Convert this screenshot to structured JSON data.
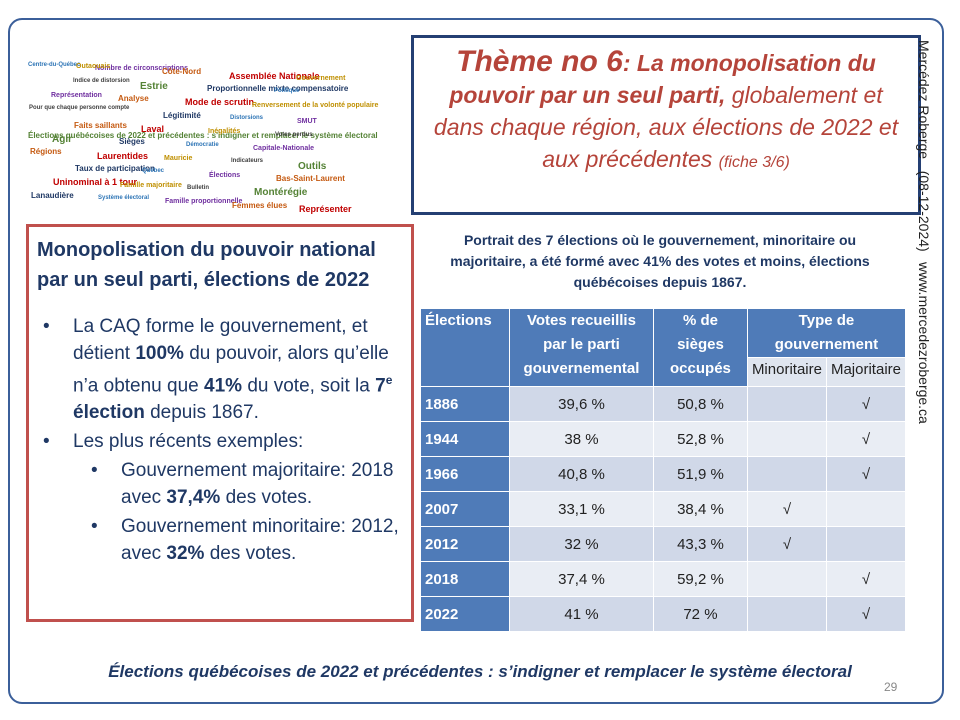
{
  "word_cloud": [
    "Centre-du-Québec",
    "Nombre de circonscriptions",
    "Côte-Nord",
    "Assemblée Nationale",
    "Gouvernement",
    "Indice de distorsion",
    "Estrie",
    "Proportionnelle mixte compensatoire",
    "Politique",
    "Représentation",
    "Analyse",
    "Mode de scrutin",
    "Renversement de la volonté populaire",
    "Pour que chaque personne compte",
    "Élections québécoises de 2022 et précédentes : s'indigner et remplacer le système électoral",
    "Légitimité",
    "Distorsions",
    "SMUT",
    "Faits saillants",
    "Laval",
    "Inégalités",
    "Votes perdus",
    "Agir",
    "Sièges",
    "Démocratie",
    "Capitale-Nationale",
    "Régions",
    "Laurentides",
    "Mauricie",
    "Indicateurs",
    "Outils",
    "Taux de participation",
    "Québec",
    "Élections",
    "Bas-Saint-Laurent",
    "Uninominal à 1 tour",
    "Famille majoritaire",
    "Bulletin",
    "Montérégie",
    "Lanaudière",
    "Système électoral",
    "Famille proportionnelle",
    "Femmes élues",
    "Représenter",
    "Outaouais"
  ],
  "title": {
    "lead": "Thème no 6",
    "bold": ": La monopolisation du pouvoir par un seul parti,",
    "rest": " globalement et dans chaque région, aux élections de 2022 et aux précédentes",
    "note": "(fiche 3/6)"
  },
  "side_credit": {
    "author": "Mercédez Roberge",
    "date": "(08-12-2024)",
    "url": "www.mercedezroberge.ca"
  },
  "left_box": {
    "heading": "Monopolisation du pouvoir national par un seul parti, élections de 2022",
    "bullets": [
      {
        "level": 1,
        "runs": [
          {
            "text": "La CAQ forme le gouvernement, et détient "
          },
          {
            "text": "100%",
            "style": "bold"
          },
          {
            "text": " du pouvoir, alors qu’elle n’a obtenu que "
          },
          {
            "text": "41%",
            "style": "bold"
          },
          {
            "text": " du vote, soit la "
          },
          {
            "text": "7",
            "style": "bold"
          },
          {
            "text": "e",
            "style": "sup"
          },
          {
            "text": " élection",
            "style": "bold"
          },
          {
            "text": " depuis 1867."
          }
        ]
      },
      {
        "level": 1,
        "runs": [
          {
            "text": "Les plus récents exemples:"
          }
        ]
      },
      {
        "level": 2,
        "runs": [
          {
            "text": "Gouvernement majoritaire: 2018 avec "
          },
          {
            "text": "37,4%",
            "style": "bold"
          },
          {
            "text": " des votes."
          }
        ]
      },
      {
        "level": 2,
        "runs": [
          {
            "text": "Gouvernement minoritaire: 2012, avec "
          },
          {
            "text": "32%",
            "style": "bold"
          },
          {
            "text": " des votes."
          }
        ]
      }
    ]
  },
  "table": {
    "caption": "Portrait des 7 élections où le gouvernement, minoritaire ou majoritaire, a été formé avec 41% des votes et moins, élections québécoises depuis 1867.",
    "columns": [
      "Élections",
      "Votes recueillis par le parti gouvernemental",
      "% de sièges occupés",
      "Type de gouvernement"
    ],
    "subcolumns": [
      "Minoritaire",
      "Majoritaire"
    ],
    "rows": [
      [
        "1886",
        "39,6 %",
        "50,8 %",
        null,
        "√"
      ],
      [
        "1944",
        "38 %",
        "52,8 %",
        null,
        "√"
      ],
      [
        "1966",
        "40,8 %",
        "51,9 %",
        null,
        "√"
      ],
      [
        "2007",
        "33,1 %",
        "38,4 %",
        "√",
        null
      ],
      [
        "2012",
        "32 %",
        "43,3 %",
        "√",
        null
      ],
      [
        "2018",
        "37,4 %",
        "59,2 %",
        null,
        "√"
      ],
      [
        "2022",
        "41 %",
        "72 %",
        null,
        "√"
      ]
    ]
  },
  "footer": "Élections québécoises de 2022 et précédentes : s’indigner et remplacer le système électoral",
  "page_number": "29"
}
